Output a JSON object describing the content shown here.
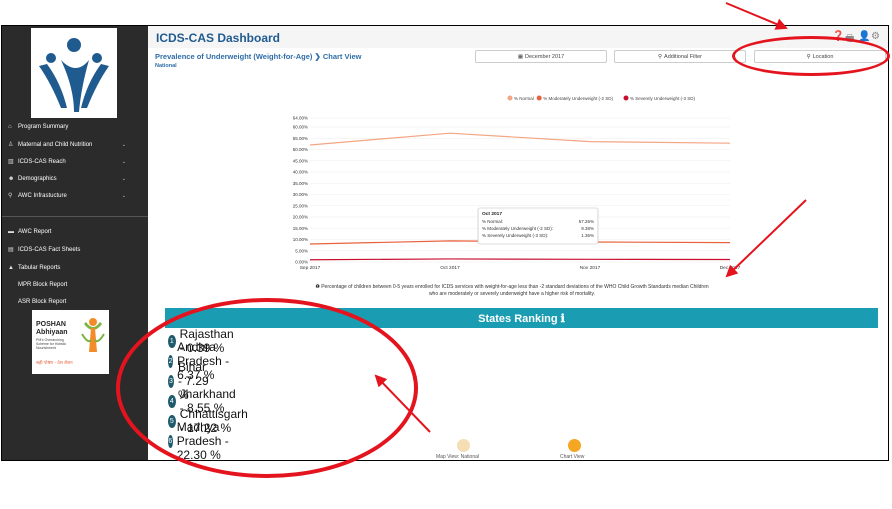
{
  "header": {
    "title": "ICDS-CAS Dashboard"
  },
  "page": {
    "subtitle": "Prevalence of Underweight (Weight-for-Age) ❯ Chart View",
    "location_label": "National"
  },
  "filters": {
    "date_label": "December 2017",
    "additional_label": "Additional Filter",
    "location_label": "Location"
  },
  "sidebar": {
    "items": [
      {
        "label": "Program Summary",
        "icon": "home-icon",
        "has_children": false
      },
      {
        "label": "Maternal and Child Nutrition",
        "icon": "child-icon",
        "has_children": true
      },
      {
        "label": "ICDS-CAS Reach",
        "icon": "bar-chart-icon",
        "has_children": true
      },
      {
        "label": "Demographics",
        "icon": "users-icon",
        "has_children": true
      },
      {
        "label": "AWC Infrastucture",
        "icon": "map-pin-icon",
        "has_children": true
      },
      {
        "label": "AWC Report",
        "icon": "report-icon",
        "has_children": false
      },
      {
        "label": "ICDS-CAS Fact Sheets",
        "icon": "document-icon",
        "has_children": false
      },
      {
        "label": "Tabular Reports",
        "icon": "warning-icon",
        "has_children": false
      },
      {
        "label": "MPR Block Report",
        "icon": "blank-icon",
        "has_children": false
      },
      {
        "label": "ASR Block Report",
        "icon": "blank-icon",
        "has_children": false
      }
    ],
    "poshan": {
      "title": "POSHAN",
      "title2": "Abhiyaan",
      "tagline": "PM's Overarching Scheme for Holistic Nourishment",
      "hindi": "सही पोषण - देश रोशन"
    }
  },
  "chart_data": {
    "type": "line",
    "categories": [
      "Sep 2017",
      "Oct 2017",
      "Nov 2017",
      "Dec 2017"
    ],
    "series": [
      {
        "name": "% Normal",
        "values": [
          52.0,
          57.26,
          53.5,
          52.8
        ],
        "color": "#f4a582"
      },
      {
        "name": "% Moderately Underweight (-2 SD)",
        "values": [
          8.0,
          9.38,
          8.9,
          8.6
        ],
        "color": "#e8623c"
      },
      {
        "name": "% Severely Underweight (-3 SD)",
        "values": [
          1.0,
          1.36,
          1.2,
          1.1
        ],
        "color": "#c8102e"
      }
    ],
    "ylim": [
      0,
      64
    ],
    "yticks": [
      "0.00%",
      "5.00%",
      "10.00%",
      "15.00%",
      "20.00%",
      "25.00%",
      "30.00%",
      "35.00%",
      "40.00%",
      "45.00%",
      "50.00%",
      "55.00%",
      "60.00%",
      "64.00%"
    ],
    "legend_position": "top-right",
    "tooltip": {
      "title": "Oct 2017",
      "rows": [
        {
          "label": "% Normal:",
          "value": "57.26%"
        },
        {
          "label": "% Moderately Underweight (-2 SD):",
          "value": "9.38%"
        },
        {
          "label": "% Severely Underweight (-3 SD):",
          "value": "1.36%"
        }
      ]
    }
  },
  "note": "❶ Percentage of children between 0-5 years enrolled for ICDS services with weight-for-age less than -2 standard deviations of the WHO Child Growth Standards median Children who are moderately or severely underweight have a higher risk of mortality.",
  "ranking": {
    "title": "States Ranking ℹ",
    "items": [
      {
        "rank": "1",
        "text": "Rajasthan - 0.39 %"
      },
      {
        "rank": "2",
        "text": "Andhra Pradesh - 6.37 %"
      },
      {
        "rank": "3",
        "text": "Bihar - 7.29 %"
      },
      {
        "rank": "4",
        "text": "Jharkhand - 8.55 %"
      },
      {
        "rank": "5",
        "text": "Chhattisgarh - 17.22 %"
      },
      {
        "rank": "6",
        "text": "Madhya Pradesh - 22.30 %"
      }
    ]
  },
  "views": {
    "map_label": "Map View: National",
    "chart_label": "Chart View",
    "map_color": "#f5deb3",
    "chart_color": "#f5a623"
  },
  "annotation_color": "#e4141e"
}
